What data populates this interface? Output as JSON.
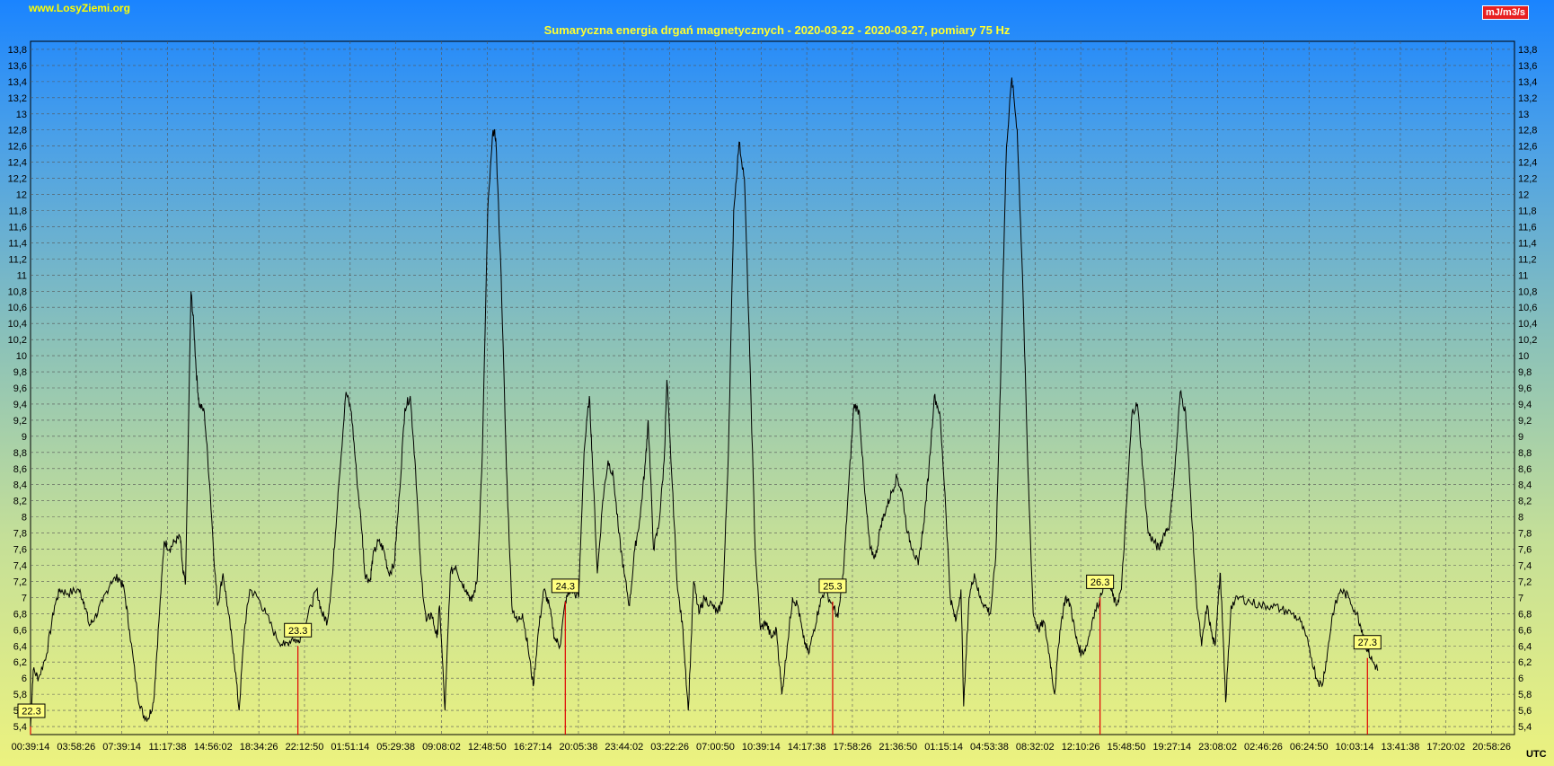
{
  "header": {
    "site": "www.LosyZiemi.org",
    "title": "Sumaryczna energia drgań magnetycznych - 2020-03-22 - 2020-03-27, pomiary 75 Hz",
    "unit": "mJ/m3/s",
    "timezone": "UTC"
  },
  "chart_data": {
    "type": "line",
    "title": "Sumaryczna energia drgań magnetycznych - 2020-03-22 - 2020-03-27, pomiary 75 Hz",
    "ylabel": "mJ/m3/s",
    "xlabel": "UTC",
    "ylim": [
      5.3,
      13.9
    ],
    "xlim": [
      0,
      5.55
    ],
    "y_ticks": [
      "5,4",
      "5,6",
      "5,8",
      "6",
      "6,2",
      "6,4",
      "6,6",
      "6,8",
      "7",
      "7,2",
      "7,4",
      "7,6",
      "7,8",
      "8",
      "8,2",
      "8,4",
      "8,6",
      "8,8",
      "9",
      "9,2",
      "9,4",
      "9,6",
      "9,8",
      "10",
      "10,2",
      "10,4",
      "10,6",
      "10,8",
      "11",
      "11,2",
      "11,4",
      "11,6",
      "11,8",
      "12",
      "12,2",
      "12,4",
      "12,6",
      "12,8",
      "13",
      "13,2",
      "13,4",
      "13,6",
      "13,8"
    ],
    "y_tick_values": [
      5.4,
      5.6,
      5.8,
      6.0,
      6.2,
      6.4,
      6.6,
      6.8,
      7.0,
      7.2,
      7.4,
      7.6,
      7.8,
      8.0,
      8.2,
      8.4,
      8.6,
      8.8,
      9.0,
      9.2,
      9.4,
      9.6,
      9.8,
      10.0,
      10.2,
      10.4,
      10.6,
      10.8,
      11.0,
      11.2,
      11.4,
      11.6,
      11.8,
      12.0,
      12.2,
      12.4,
      12.6,
      12.8,
      13.0,
      13.2,
      13.4,
      13.6,
      13.8
    ],
    "x_ticks": [
      "00:39:14",
      "03:58:26",
      "07:39:14",
      "11:17:38",
      "14:56:02",
      "18:34:26",
      "22:12:50",
      "01:51:14",
      "05:29:38",
      "09:08:02",
      "12:48:50",
      "16:27:14",
      "20:05:38",
      "23:44:02",
      "03:22:26",
      "07:00:50",
      "10:39:14",
      "14:17:38",
      "17:58:26",
      "21:36:50",
      "01:15:14",
      "04:53:38",
      "08:32:02",
      "12:10:26",
      "15:48:50",
      "19:27:14",
      "23:08:02",
      "02:46:26",
      "06:24:50",
      "10:03:14",
      "13:41:38",
      "17:20:02",
      "20:58:26"
    ],
    "grid": true,
    "day_markers": [
      {
        "label": "22.3",
        "x": 0.0,
        "y": 5.4
      },
      {
        "label": "23.3",
        "x": 1.0,
        "y": 6.4
      },
      {
        "label": "24.3",
        "x": 2.0,
        "y": 6.95
      },
      {
        "label": "25.3",
        "x": 3.0,
        "y": 6.95
      },
      {
        "label": "26.3",
        "x": 4.0,
        "y": 7.0
      },
      {
        "label": "27.3",
        "x": 5.0,
        "y": 6.25
      }
    ],
    "series": [
      {
        "values": [
          [
            0.0,
            5.4
          ],
          [
            0.01,
            6.1
          ],
          [
            0.03,
            6.0
          ],
          [
            0.06,
            6.3
          ],
          [
            0.09,
            6.9
          ],
          [
            0.11,
            7.1
          ],
          [
            0.14,
            7.05
          ],
          [
            0.18,
            7.1
          ],
          [
            0.2,
            6.95
          ],
          [
            0.22,
            6.65
          ],
          [
            0.24,
            6.75
          ],
          [
            0.27,
            6.95
          ],
          [
            0.3,
            7.2
          ],
          [
            0.33,
            7.25
          ],
          [
            0.35,
            7.1
          ],
          [
            0.37,
            6.6
          ],
          [
            0.4,
            5.8
          ],
          [
            0.42,
            5.55
          ],
          [
            0.44,
            5.5
          ],
          [
            0.46,
            5.7
          ],
          [
            0.48,
            6.7
          ],
          [
            0.5,
            7.7
          ],
          [
            0.52,
            7.6
          ],
          [
            0.54,
            7.7
          ],
          [
            0.56,
            7.75
          ],
          [
            0.57,
            7.3
          ],
          [
            0.58,
            7.2
          ],
          [
            0.6,
            10.8
          ],
          [
            0.61,
            10.4
          ],
          [
            0.62,
            9.8
          ],
          [
            0.63,
            9.4
          ],
          [
            0.65,
            9.3
          ],
          [
            0.67,
            8.4
          ],
          [
            0.69,
            7.3
          ],
          [
            0.7,
            6.9
          ],
          [
            0.72,
            7.3
          ],
          [
            0.74,
            6.8
          ],
          [
            0.76,
            6.3
          ],
          [
            0.78,
            5.6
          ],
          [
            0.8,
            6.6
          ],
          [
            0.82,
            7.1
          ],
          [
            0.85,
            7.0
          ],
          [
            0.88,
            6.8
          ],
          [
            0.92,
            6.5
          ],
          [
            0.95,
            6.4
          ],
          [
            0.98,
            6.5
          ],
          [
            1.0,
            6.45
          ],
          [
            1.02,
            6.6
          ],
          [
            1.05,
            6.9
          ],
          [
            1.07,
            7.1
          ],
          [
            1.09,
            6.8
          ],
          [
            1.11,
            6.7
          ],
          [
            1.13,
            7.3
          ],
          [
            1.15,
            8.3
          ],
          [
            1.18,
            9.55
          ],
          [
            1.2,
            9.3
          ],
          [
            1.22,
            8.5
          ],
          [
            1.24,
            7.8
          ],
          [
            1.25,
            7.3
          ],
          [
            1.27,
            7.2
          ],
          [
            1.28,
            7.5
          ],
          [
            1.3,
            7.7
          ],
          [
            1.32,
            7.6
          ],
          [
            1.34,
            7.3
          ],
          [
            1.36,
            7.4
          ],
          [
            1.38,
            8.3
          ],
          [
            1.4,
            9.35
          ],
          [
            1.42,
            9.5
          ],
          [
            1.44,
            8.6
          ],
          [
            1.46,
            7.3
          ],
          [
            1.48,
            6.7
          ],
          [
            1.5,
            6.8
          ],
          [
            1.52,
            6.5
          ],
          [
            1.53,
            6.9
          ],
          [
            1.55,
            5.6
          ],
          [
            1.57,
            7.3
          ],
          [
            1.59,
            7.4
          ],
          [
            1.61,
            7.2
          ],
          [
            1.63,
            7.1
          ],
          [
            1.65,
            6.95
          ],
          [
            1.67,
            7.2
          ],
          [
            1.69,
            8.8
          ],
          [
            1.71,
            11.8
          ],
          [
            1.73,
            12.8
          ],
          [
            1.74,
            12.7
          ],
          [
            1.76,
            11.0
          ],
          [
            1.78,
            8.6
          ],
          [
            1.8,
            6.9
          ],
          [
            1.82,
            6.7
          ],
          [
            1.84,
            6.8
          ],
          [
            1.86,
            6.4
          ],
          [
            1.88,
            5.9
          ],
          [
            1.9,
            6.6
          ],
          [
            1.92,
            7.1
          ],
          [
            1.94,
            6.9
          ],
          [
            1.96,
            6.5
          ],
          [
            1.98,
            6.4
          ],
          [
            2.0,
            6.95
          ],
          [
            2.02,
            7.1
          ],
          [
            2.05,
            7.0
          ],
          [
            2.07,
            8.8
          ],
          [
            2.09,
            9.5
          ],
          [
            2.1,
            8.8
          ],
          [
            2.12,
            7.3
          ],
          [
            2.14,
            8.2
          ],
          [
            2.16,
            8.7
          ],
          [
            2.18,
            8.5
          ],
          [
            2.2,
            7.8
          ],
          [
            2.22,
            7.3
          ],
          [
            2.24,
            6.9
          ],
          [
            2.26,
            7.6
          ],
          [
            2.28,
            8.0
          ],
          [
            2.3,
            8.7
          ],
          [
            2.31,
            9.2
          ],
          [
            2.33,
            7.6
          ],
          [
            2.35,
            7.9
          ],
          [
            2.37,
            8.7
          ],
          [
            2.38,
            9.7
          ],
          [
            2.4,
            8.4
          ],
          [
            2.42,
            7.1
          ],
          [
            2.44,
            6.6
          ],
          [
            2.46,
            5.6
          ],
          [
            2.48,
            7.2
          ],
          [
            2.5,
            6.8
          ],
          [
            2.52,
            7.0
          ],
          [
            2.55,
            6.9
          ],
          [
            2.57,
            6.8
          ],
          [
            2.59,
            7.0
          ],
          [
            2.61,
            8.8
          ],
          [
            2.63,
            11.8
          ],
          [
            2.65,
            12.65
          ],
          [
            2.67,
            12.2
          ],
          [
            2.69,
            10.0
          ],
          [
            2.71,
            7.6
          ],
          [
            2.73,
            6.6
          ],
          [
            2.75,
            6.7
          ],
          [
            2.77,
            6.5
          ],
          [
            2.79,
            6.6
          ],
          [
            2.81,
            5.8
          ],
          [
            2.83,
            6.4
          ],
          [
            2.85,
            7.0
          ],
          [
            2.87,
            6.9
          ],
          [
            2.89,
            6.5
          ],
          [
            2.91,
            6.3
          ],
          [
            2.93,
            6.6
          ],
          [
            2.95,
            6.9
          ],
          [
            2.97,
            7.1
          ],
          [
            3.0,
            6.9
          ],
          [
            3.02,
            6.75
          ],
          [
            3.04,
            7.3
          ],
          [
            3.06,
            8.4
          ],
          [
            3.08,
            9.4
          ],
          [
            3.1,
            9.3
          ],
          [
            3.12,
            8.3
          ],
          [
            3.14,
            7.6
          ],
          [
            3.16,
            7.5
          ],
          [
            3.18,
            7.9
          ],
          [
            3.2,
            8.1
          ],
          [
            3.22,
            8.3
          ],
          [
            3.24,
            8.5
          ],
          [
            3.26,
            8.3
          ],
          [
            3.28,
            7.8
          ],
          [
            3.3,
            7.6
          ],
          [
            3.32,
            7.4
          ],
          [
            3.34,
            7.9
          ],
          [
            3.36,
            8.6
          ],
          [
            3.38,
            9.5
          ],
          [
            3.4,
            9.3
          ],
          [
            3.42,
            8.3
          ],
          [
            3.44,
            7.0
          ],
          [
            3.46,
            6.7
          ],
          [
            3.48,
            7.1
          ],
          [
            3.49,
            5.65
          ],
          [
            3.51,
            7.0
          ],
          [
            3.53,
            7.3
          ],
          [
            3.55,
            7.0
          ],
          [
            3.57,
            6.9
          ],
          [
            3.59,
            6.8
          ],
          [
            3.61,
            7.5
          ],
          [
            3.63,
            10.0
          ],
          [
            3.65,
            12.6
          ],
          [
            3.67,
            13.45
          ],
          [
            3.69,
            12.8
          ],
          [
            3.71,
            11.0
          ],
          [
            3.73,
            8.6
          ],
          [
            3.75,
            6.8
          ],
          [
            3.77,
            6.6
          ],
          [
            3.79,
            6.7
          ],
          [
            3.81,
            6.3
          ],
          [
            3.83,
            5.8
          ],
          [
            3.85,
            6.6
          ],
          [
            3.87,
            7.0
          ],
          [
            3.89,
            6.9
          ],
          [
            3.91,
            6.5
          ],
          [
            3.93,
            6.3
          ],
          [
            3.95,
            6.4
          ],
          [
            3.97,
            6.7
          ],
          [
            4.0,
            7.0
          ],
          [
            4.02,
            7.25
          ],
          [
            4.04,
            7.1
          ],
          [
            4.06,
            6.9
          ],
          [
            4.08,
            7.1
          ],
          [
            4.1,
            8.2
          ],
          [
            4.12,
            9.3
          ],
          [
            4.14,
            9.4
          ],
          [
            4.16,
            8.6
          ],
          [
            4.18,
            7.8
          ],
          [
            4.2,
            7.7
          ],
          [
            4.22,
            7.6
          ],
          [
            4.24,
            7.8
          ],
          [
            4.26,
            7.9
          ],
          [
            4.28,
            8.6
          ],
          [
            4.3,
            9.55
          ],
          [
            4.32,
            9.3
          ],
          [
            4.34,
            8.2
          ],
          [
            4.36,
            7.0
          ],
          [
            4.38,
            6.4
          ],
          [
            4.4,
            6.9
          ],
          [
            4.42,
            6.5
          ],
          [
            4.43,
            6.4
          ],
          [
            4.44,
            6.9
          ],
          [
            4.45,
            7.3
          ],
          [
            4.47,
            5.7
          ],
          [
            4.49,
            6.9
          ],
          [
            4.52,
            7.0
          ],
          [
            4.56,
            6.95
          ],
          [
            4.6,
            6.9
          ],
          [
            4.64,
            6.9
          ],
          [
            4.68,
            6.85
          ],
          [
            4.72,
            6.8
          ],
          [
            4.75,
            6.7
          ],
          [
            4.78,
            6.4
          ],
          [
            4.81,
            6.0
          ],
          [
            4.83,
            5.9
          ],
          [
            4.85,
            6.3
          ],
          [
            4.87,
            6.8
          ],
          [
            4.9,
            7.1
          ],
          [
            4.93,
            7.0
          ],
          [
            4.96,
            6.8
          ],
          [
            4.98,
            6.6
          ],
          [
            5.0,
            6.35
          ],
          [
            5.02,
            6.2
          ],
          [
            5.04,
            6.1
          ]
        ]
      }
    ]
  }
}
